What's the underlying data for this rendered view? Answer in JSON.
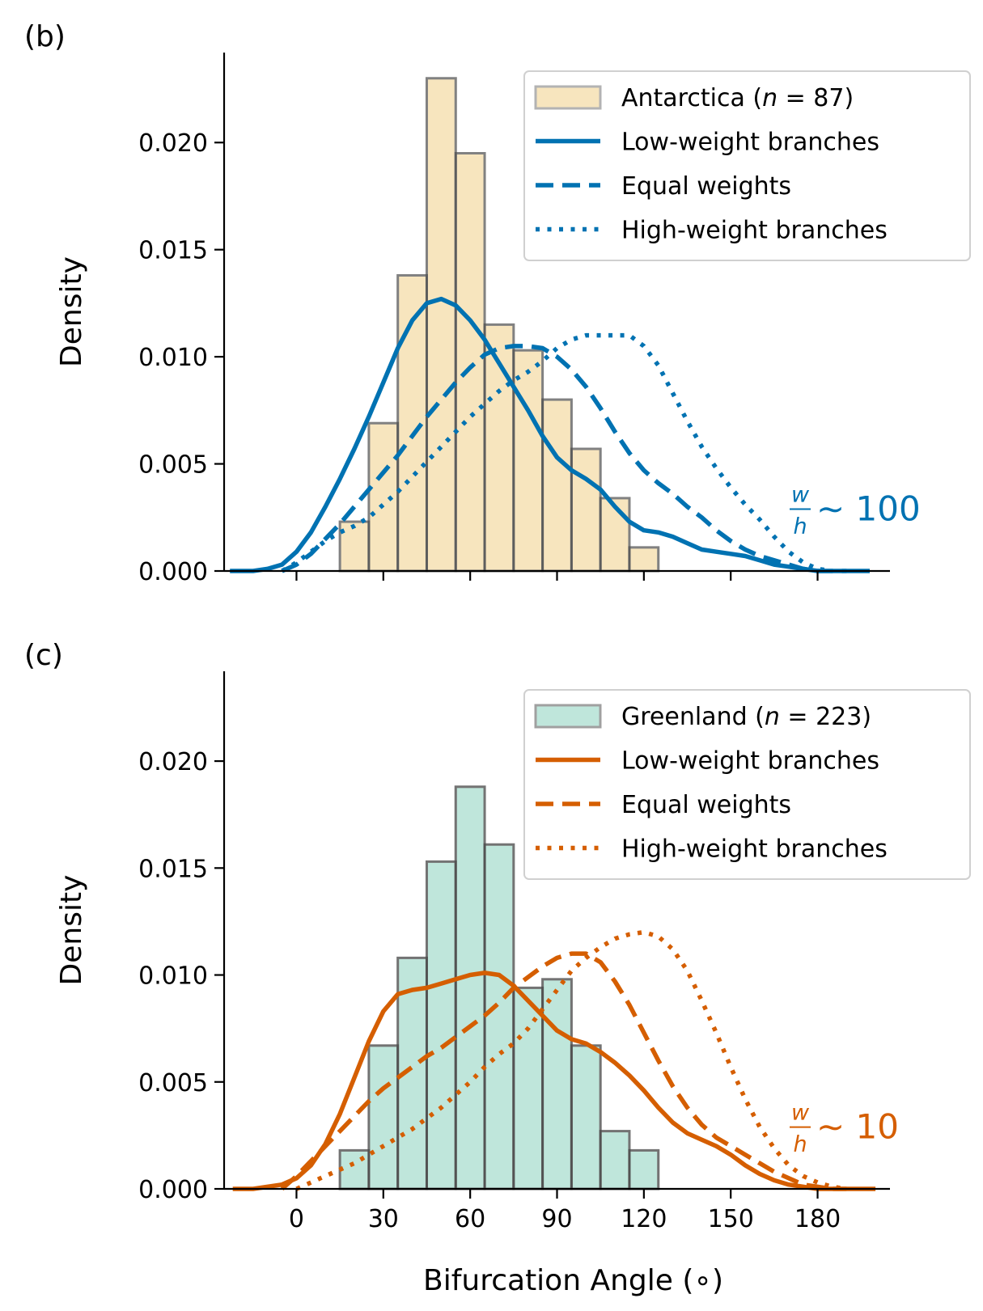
{
  "chart_data": [
    {
      "type": "histogram+kde",
      "panel_label": "(b)",
      "ylabel": "Density",
      "xlabel": "",
      "xlim": [
        -25,
        205
      ],
      "ylim": [
        0,
        0.0242
      ],
      "xticks": [
        0,
        30,
        60,
        90,
        120,
        150,
        180
      ],
      "show_xtick_labels": false,
      "yticks": [
        0.0,
        0.005,
        0.01,
        0.015,
        0.02
      ],
      "ytick_labels": [
        "0.000",
        "0.005",
        "0.010",
        "0.015",
        "0.020"
      ],
      "legend_position": "upper-right",
      "histogram": {
        "name": "Antarctica (n = 87)",
        "label_prefix": "Antarctica (",
        "label_n": "n",
        "label_suffix": " = 87)",
        "fill": "#f7e5be",
        "edge": "#b3b3b3",
        "bin_edges": [
          15,
          25,
          35,
          45,
          55,
          65,
          75,
          85,
          95,
          105,
          115,
          125
        ],
        "values": [
          0.0023,
          0.0069,
          0.0138,
          0.023,
          0.0195,
          0.0115,
          0.0103,
          0.008,
          0.0057,
          0.0034,
          0.0011
        ]
      },
      "series": [
        {
          "name": "Low-weight branches",
          "style": "solid",
          "color": "#0072b2",
          "x": [
            -23,
            -15,
            -10,
            -5,
            0,
            5,
            10,
            15,
            20,
            25,
            30,
            35,
            40,
            45,
            50,
            55,
            60,
            65,
            70,
            75,
            80,
            85,
            90,
            95,
            100,
            105,
            110,
            115,
            120,
            125,
            130,
            135,
            140,
            145,
            150,
            155,
            160,
            165,
            170,
            175,
            180,
            185,
            190,
            198
          ],
          "y": [
            0.0,
            0.0,
            0.0001,
            0.0003,
            0.0009,
            0.0018,
            0.003,
            0.0043,
            0.0057,
            0.0072,
            0.0088,
            0.0104,
            0.0117,
            0.0125,
            0.0127,
            0.0124,
            0.0117,
            0.0108,
            0.0097,
            0.0086,
            0.0075,
            0.0063,
            0.0053,
            0.0047,
            0.0043,
            0.0038,
            0.003,
            0.0023,
            0.0019,
            0.0018,
            0.0016,
            0.0013,
            0.001,
            0.0009,
            0.0008,
            0.0007,
            0.0005,
            0.0003,
            0.0002,
            0.0001,
            0.0,
            0.0,
            0.0,
            0.0
          ]
        },
        {
          "name": "Equal weights",
          "style": "dashed",
          "color": "#0072b2",
          "x": [
            -5,
            0,
            5,
            10,
            15,
            20,
            25,
            30,
            35,
            40,
            45,
            50,
            55,
            60,
            65,
            70,
            75,
            80,
            85,
            90,
            95,
            100,
            105,
            110,
            115,
            120,
            125,
            130,
            135,
            140,
            145,
            150,
            155,
            160,
            165,
            170,
            175,
            180,
            185,
            190
          ],
          "y": [
            0.0,
            0.0003,
            0.0008,
            0.0015,
            0.0022,
            0.003,
            0.0038,
            0.0046,
            0.0054,
            0.0063,
            0.0072,
            0.008,
            0.0088,
            0.0095,
            0.0101,
            0.0104,
            0.0105,
            0.0105,
            0.0104,
            0.01,
            0.0094,
            0.0086,
            0.0076,
            0.0065,
            0.0055,
            0.0047,
            0.0041,
            0.0036,
            0.003,
            0.0025,
            0.0019,
            0.0014,
            0.001,
            0.0007,
            0.0005,
            0.0003,
            0.0001,
            0.0,
            0.0,
            0.0
          ]
        },
        {
          "name": "High-weight branches",
          "style": "dotted",
          "color": "#0072b2",
          "x": [
            -5,
            0,
            5,
            10,
            15,
            20,
            25,
            30,
            35,
            40,
            45,
            50,
            55,
            60,
            65,
            70,
            75,
            80,
            85,
            90,
            95,
            100,
            105,
            110,
            115,
            120,
            125,
            130,
            135,
            140,
            145,
            150,
            155,
            160,
            165,
            170,
            175,
            180,
            185
          ],
          "y": [
            0.0,
            0.0004,
            0.0009,
            0.0014,
            0.0018,
            0.0021,
            0.0025,
            0.0031,
            0.0037,
            0.0044,
            0.0051,
            0.0058,
            0.0065,
            0.0072,
            0.0078,
            0.0084,
            0.0089,
            0.0093,
            0.0098,
            0.0104,
            0.0108,
            0.011,
            0.011,
            0.011,
            0.011,
            0.0105,
            0.0096,
            0.0083,
            0.007,
            0.0058,
            0.0048,
            0.0039,
            0.0031,
            0.0024,
            0.0016,
            0.0009,
            0.0004,
            0.0001,
            0.0
          ]
        }
      ],
      "annotation": {
        "numerator": "w",
        "denominator": "h",
        "text": "∼ 100",
        "color": "#0072b2",
        "x": 183,
        "y": 0.003
      }
    },
    {
      "type": "histogram+kde",
      "panel_label": "(c)",
      "ylabel": "Density",
      "xlabel": "Bifurcation Angle (∘)",
      "xlim": [
        -25,
        205
      ],
      "ylim": [
        0,
        0.0242
      ],
      "xticks": [
        0,
        30,
        60,
        90,
        120,
        150,
        180
      ],
      "xtick_labels": [
        "0",
        "30",
        "60",
        "90",
        "120",
        "150",
        "180"
      ],
      "show_xtick_labels": true,
      "yticks": [
        0.0,
        0.005,
        0.01,
        0.015,
        0.02
      ],
      "ytick_labels": [
        "0.000",
        "0.005",
        "0.010",
        "0.015",
        "0.020"
      ],
      "legend_position": "upper-right",
      "histogram": {
        "name": "Greenland (n = 223)",
        "label_prefix": "Greenland (",
        "label_n": "n",
        "label_suffix": " = 223)",
        "fill": "#bfe6db",
        "edge": "#a0a0a0",
        "bin_edges": [
          15,
          25,
          35,
          45,
          55,
          65,
          75,
          85,
          95,
          105,
          115,
          125
        ],
        "values": [
          0.0018,
          0.0067,
          0.0108,
          0.0153,
          0.0188,
          0.0161,
          0.0094,
          0.0098,
          0.0067,
          0.0027,
          0.0018
        ]
      },
      "series": [
        {
          "name": "Low-weight branches",
          "style": "solid",
          "color": "#d55e00",
          "x": [
            -22,
            -15,
            -10,
            -5,
            0,
            5,
            10,
            15,
            20,
            25,
            30,
            35,
            40,
            45,
            50,
            55,
            60,
            65,
            70,
            75,
            80,
            85,
            90,
            95,
            100,
            105,
            110,
            115,
            120,
            125,
            130,
            135,
            140,
            145,
            150,
            155,
            160,
            165,
            170,
            175,
            180,
            185,
            190,
            200
          ],
          "y": [
            0.0,
            0.0,
            0.0001,
            0.0002,
            0.0005,
            0.0011,
            0.0021,
            0.0035,
            0.0052,
            0.0069,
            0.0083,
            0.0091,
            0.0093,
            0.0094,
            0.0096,
            0.0098,
            0.01,
            0.0101,
            0.01,
            0.0095,
            0.0088,
            0.0081,
            0.0074,
            0.007,
            0.0068,
            0.0064,
            0.0059,
            0.0053,
            0.0046,
            0.0038,
            0.0031,
            0.0026,
            0.0023,
            0.002,
            0.0016,
            0.0011,
            0.0007,
            0.0004,
            0.0002,
            0.0001,
            0.0,
            0.0,
            0.0,
            0.0
          ]
        },
        {
          "name": "Equal weights",
          "style": "dashed",
          "color": "#d55e00",
          "x": [
            -5,
            0,
            5,
            10,
            15,
            20,
            25,
            30,
            35,
            40,
            45,
            50,
            55,
            60,
            65,
            70,
            75,
            80,
            85,
            90,
            95,
            100,
            105,
            110,
            115,
            120,
            125,
            130,
            135,
            140,
            145,
            150,
            155,
            160,
            165,
            170,
            175,
            180,
            185,
            190
          ],
          "y": [
            0.0,
            0.0006,
            0.0013,
            0.002,
            0.0027,
            0.0034,
            0.0041,
            0.0047,
            0.0052,
            0.0057,
            0.0062,
            0.0066,
            0.0071,
            0.0076,
            0.0081,
            0.0087,
            0.0094,
            0.0099,
            0.0104,
            0.0108,
            0.011,
            0.011,
            0.0106,
            0.0097,
            0.0086,
            0.0073,
            0.006,
            0.0048,
            0.0038,
            0.003,
            0.0024,
            0.002,
            0.0016,
            0.0012,
            0.0008,
            0.0005,
            0.0002,
            0.0001,
            0.0,
            0.0
          ]
        },
        {
          "name": "High-weight branches",
          "style": "dotted",
          "color": "#d55e00",
          "x": [
            0,
            5,
            10,
            15,
            20,
            25,
            30,
            35,
            40,
            45,
            50,
            55,
            60,
            65,
            70,
            75,
            80,
            85,
            90,
            95,
            100,
            105,
            110,
            115,
            120,
            125,
            130,
            135,
            140,
            145,
            150,
            155,
            160,
            165,
            170,
            175,
            180,
            185,
            190
          ],
          "y": [
            0.0,
            0.0003,
            0.0006,
            0.0009,
            0.0012,
            0.0016,
            0.002,
            0.0024,
            0.0028,
            0.0033,
            0.0038,
            0.0044,
            0.005,
            0.0057,
            0.0063,
            0.0068,
            0.0075,
            0.0084,
            0.0093,
            0.0102,
            0.0108,
            0.0113,
            0.0117,
            0.0119,
            0.012,
            0.0118,
            0.0112,
            0.0102,
            0.0088,
            0.0073,
            0.0057,
            0.0042,
            0.0029,
            0.0019,
            0.0011,
            0.0006,
            0.0003,
            0.0001,
            0.0
          ]
        }
      ],
      "annotation": {
        "numerator": "w",
        "denominator": "h",
        "text": "∼ 10",
        "color": "#d55e00",
        "x": 183,
        "y": 0.003
      }
    }
  ]
}
